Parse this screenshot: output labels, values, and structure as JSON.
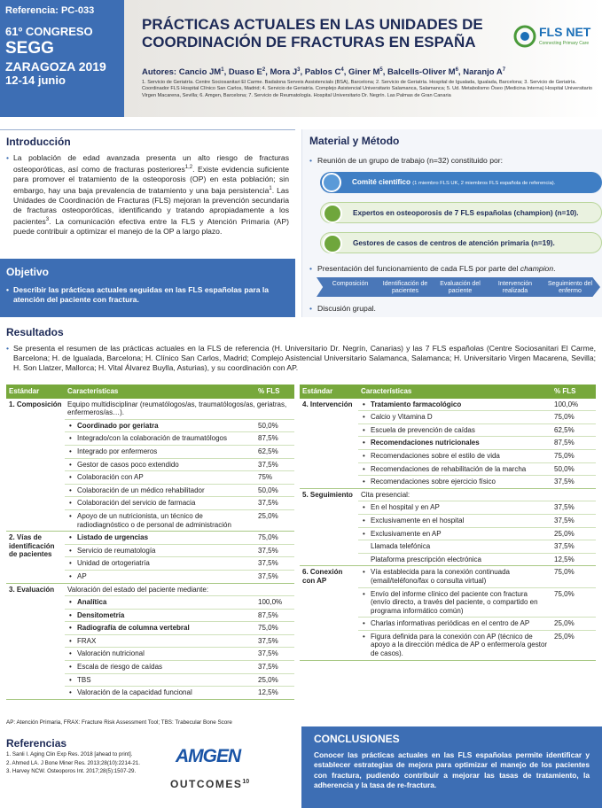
{
  "header": {
    "congress": [
      "Referencia: PC-033",
      "61º CONGRESO",
      "SEGG",
      "ZARAGOZA 2019",
      "12-14 junio"
    ],
    "title": "PRÁCTICAS ACTUALES EN LAS UNIDADES DE COORDINACIÓN DE FRACTURAS EN ESPAÑA",
    "logo": {
      "name": "FLS NET",
      "tagline": "Connecting Primary Care"
    },
    "authors_label": "Autores:",
    "authors": [
      {
        "name": "Cancio JM",
        "sup": "1",
        "sep": ","
      },
      {
        "name": "Duaso E",
        "sup": "2",
        "sep": ","
      },
      {
        "name": "Mora J",
        "sup": "3",
        "sep": ","
      },
      {
        "name": "Pablos C",
        "sup": "4",
        "sep": ","
      },
      {
        "name": "Giner M",
        "sup": "5",
        "sep": ","
      },
      {
        "name": "Balcells-Oliver M",
        "sup": "6",
        "sep": ","
      },
      {
        "name": "Naranjo A",
        "sup": "7"
      }
    ],
    "affiliations": "1. Servicio de Geriatría. Centre Sociosanitari El Carme. Badalona Serveis Assistencials (BSA), Barcelona; 2. Servicio de Geriatría. Hospital de Igualada, Igualada, Barcelona; 3. Servicio de Geriatría. Coordinador FLS Hospital Clínico San Carlos, Madrid; 4. Servicio de Geriatría. Complejo Asistencial Universitario Salamanca, Salamanca; 5. Ud. Metabolismo Óseo (Medicina Interna) Hospital Universitario Virgen Macarena, Sevilla; 6. Amgen, Barcelona; 7. Servicio de Reumatología. Hospital Universitario Dr. Negrín. Las Palmas de Gran Canaria"
  },
  "intro": {
    "heading": "Introducción",
    "runs": [
      {
        "text": "La población de edad avanzada presenta un alto riesgo de fracturas osteoporóticas, así como de fracturas posteriores"
      },
      {
        "sup": "1,2"
      },
      {
        "text": ". Existe evidencia suficiente para promover el tratamiento de la osteoporosis (OP) en esta población; sin embargo, hay una baja prevalencia de tratamiento y una baja persistencia"
      },
      {
        "sup": "1"
      },
      {
        "text": ". Las Unidades de Coordinación de Fracturas (FLS) mejoran la prevención secundaria de fracturas osteoporóticas, identificando y tratando apropiadamente a los pacientes"
      },
      {
        "sup": "3"
      },
      {
        "text": ". La comunicación efectiva entre la FLS y Atención Primaria (AP) puede contribuir a optimizar el manejo de la OP a largo plazo."
      }
    ]
  },
  "objective": {
    "heading": "Objetivo",
    "text": "Describir las prácticas actuales seguidas en las FLS españolas para la atención del paciente con fractura."
  },
  "method": {
    "heading": "Material y Método",
    "meeting": "Reunión de un grupo de trabajo (n=32) constituido por:",
    "groups": [
      {
        "label": "Comité científico",
        "detail": "(1 miembro FLS UK, 2 miembros FLS española de referencia)."
      },
      {
        "label": "Expertos en osteoporosis de 7 FLS españolas (champion) (n=10)."
      },
      {
        "label": "Gestores de casos de centros de atención primaria (n=19)."
      }
    ],
    "presentation": {
      "text": "Presentación del funcionamiento de cada FLS por parte del ",
      "em": "champion",
      "end": "."
    },
    "steps": [
      "Composición",
      "Identificación de pacientes",
      "Evaluación del paciente",
      "Intervención realizada",
      "Seguimiento del enfermo"
    ],
    "discussion": "Discusión grupal."
  },
  "results": {
    "heading": "Resultados",
    "text": "Se presenta el resumen de las prácticas actuales en la FLS de referencia (H. Universitario Dr. Negrín, Canarias) y las 7 FLS españolas (Centre Sociosanitari El Carme, Barcelona; H. de Igualada, Barcelona; H. Clínico San Carlos, Madrid; Complejo Asistencial Universitario Salamanca, Salamanca; H. Universitario Virgen Macarena, Sevilla; H. Son Llatzer, Mallorca; H. Vital Álvarez Buylla, Asturias), y su coordinación con AP.",
    "tables": [
      {
        "headers": [
          "Estándar",
          "Características",
          "% FLS"
        ],
        "groups": [
          {
            "standard": "1. Composición",
            "intro": "Equipo multidisciplinar (reumatólogos/as, traumatólogos/as, geriatras, enfermeros/as…).",
            "items": [
              {
                "text": "Coordinado por geriatra",
                "pct": "50,0%",
                "bold": true
              },
              {
                "text": "Integrado/con la colaboración de traumatólogos",
                "pct": "87,5%"
              },
              {
                "text": "Integrado por enfermeros",
                "pct": "62,5%"
              },
              {
                "text": "Gestor de casos poco extendido",
                "pct": "37,5%"
              },
              {
                "text": "Colaboración con AP",
                "pct": "75%"
              },
              {
                "text": "Colaboración de un médico rehabilitador",
                "pct": "50,0%"
              },
              {
                "text": "Colaboración del servicio de farmacia",
                "pct": "37,5%"
              },
              {
                "text": "Apoyo de un nutricionista, un técnico de radiodiagnóstico o de personal de administración",
                "pct": "25,0%"
              }
            ]
          },
          {
            "standard": "2. Vías de identificación de pacientes",
            "items": [
              {
                "text": "Listado de urgencias",
                "pct": "75,0%",
                "bold": true
              },
              {
                "text": "Servicio de reumatología",
                "pct": "37,5%"
              },
              {
                "text": "Unidad de ortogeriatría",
                "pct": "37,5%"
              },
              {
                "text": "AP",
                "pct": "37,5%"
              }
            ]
          },
          {
            "standard": "3. Evaluación",
            "intro": "Valoración del estado del paciente mediante:",
            "items": [
              {
                "text": "Analítica",
                "pct": "100,0%",
                "bold": true
              },
              {
                "text": "Densitometría",
                "pct": "87,5%",
                "bold": true
              },
              {
                "text": "Radiografía de columna vertebral",
                "pct": "75,0%",
                "bold": true
              },
              {
                "text": "FRAX",
                "pct": "37,5%"
              },
              {
                "text": "Valoración nutricional",
                "pct": "37,5%"
              },
              {
                "text": "Escala de riesgo de caídas",
                "pct": "37,5%"
              },
              {
                "text": "TBS",
                "pct": "25,0%"
              },
              {
                "text": "Valoración de la capacidad funcional",
                "pct": "12,5%"
              }
            ]
          }
        ]
      },
      {
        "headers": [
          "Estándar",
          "Características",
          "% FLS"
        ],
        "groups": [
          {
            "standard": "4. Intervención",
            "items": [
              {
                "text": "Tratamiento farmacológico",
                "pct": "100,0%",
                "bold": true
              },
              {
                "text": "Calcio y Vitamina D",
                "pct": "75,0%"
              },
              {
                "text": "Escuela de prevención de caídas",
                "pct": "62,5%"
              },
              {
                "text": "Recomendaciones nutricionales",
                "pct": "87,5%",
                "bold": true
              },
              {
                "text": "Recomendaciones sobre el estilo de vida",
                "pct": "75,0%"
              },
              {
                "text": "Recomendaciones de rehabilitación de la marcha",
                "pct": "50,0%"
              },
              {
                "text": "Recomendaciones sobre ejercicio físico",
                "pct": "37,5%"
              }
            ]
          },
          {
            "standard": "5. Seguimiento",
            "intro": "Cita presencial:",
            "items": [
              {
                "text": "En el hospital y en AP",
                "pct": "37,5%"
              },
              {
                "text": "Exclusivamente en el hospital",
                "pct": "37,5%"
              },
              {
                "text": "Exclusivamente en AP",
                "pct": "25,0%"
              },
              {
                "text": "Llamada telefónica",
                "pct": "37,5%",
                "bullet": false
              },
              {
                "text": "Plataforma prescripción electrónica",
                "pct": "12,5%",
                "bullet": false
              }
            ]
          },
          {
            "standard": "6. Conexión con AP",
            "items": [
              {
                "text": "Vía establecida para la conexión continuada (email/teléfono/fax o consulta virtual)",
                "pct": "75,0%"
              },
              {
                "text": "Envío del informe clínico del paciente con fractura (envío directo, a través del paciente, o compartido en programa informático común)",
                "pct": "75,0%"
              },
              {
                "text": "Charlas informativas periódicas en el centro de AP",
                "pct": "25,0%"
              },
              {
                "text": "Figura definida para la conexión con AP (técnico de apoyo a la dirección médica de AP o enfermero/a gestor de casos).",
                "pct": "25,0%"
              }
            ]
          }
        ]
      }
    ],
    "footnote": "AP: Atención Primaria, FRAX: Fracture Risk Assessment Tool; TBS: Trabecular Bone Score"
  },
  "references": {
    "heading": "Referencias",
    "items": [
      "1. Sanli I. Aging Clin Exp Res. 2018 [ahead to print].",
      "2. Ahmed LA. J Bone Miner Res. 2013;28(10):2214-21.",
      "3. Harvey NCW. Osteoporos Int. 2017;28(5):1507-29."
    ]
  },
  "sponsors": {
    "amgen": "AMGEN",
    "outcomes": "OUTCOMES",
    "outcomes_sup": "10"
  },
  "conclusions": {
    "heading": "CONCLUSIONES",
    "text": "Conocer las prácticas actuales en las FLS españolas permite identificar y establecer estrategias de mejora para optimizar el manejo de los pacientes con fractura, pudiendo contribuir a mejorar las tasas de tratamiento, la adherencia y la tasa de re-fractura."
  }
}
